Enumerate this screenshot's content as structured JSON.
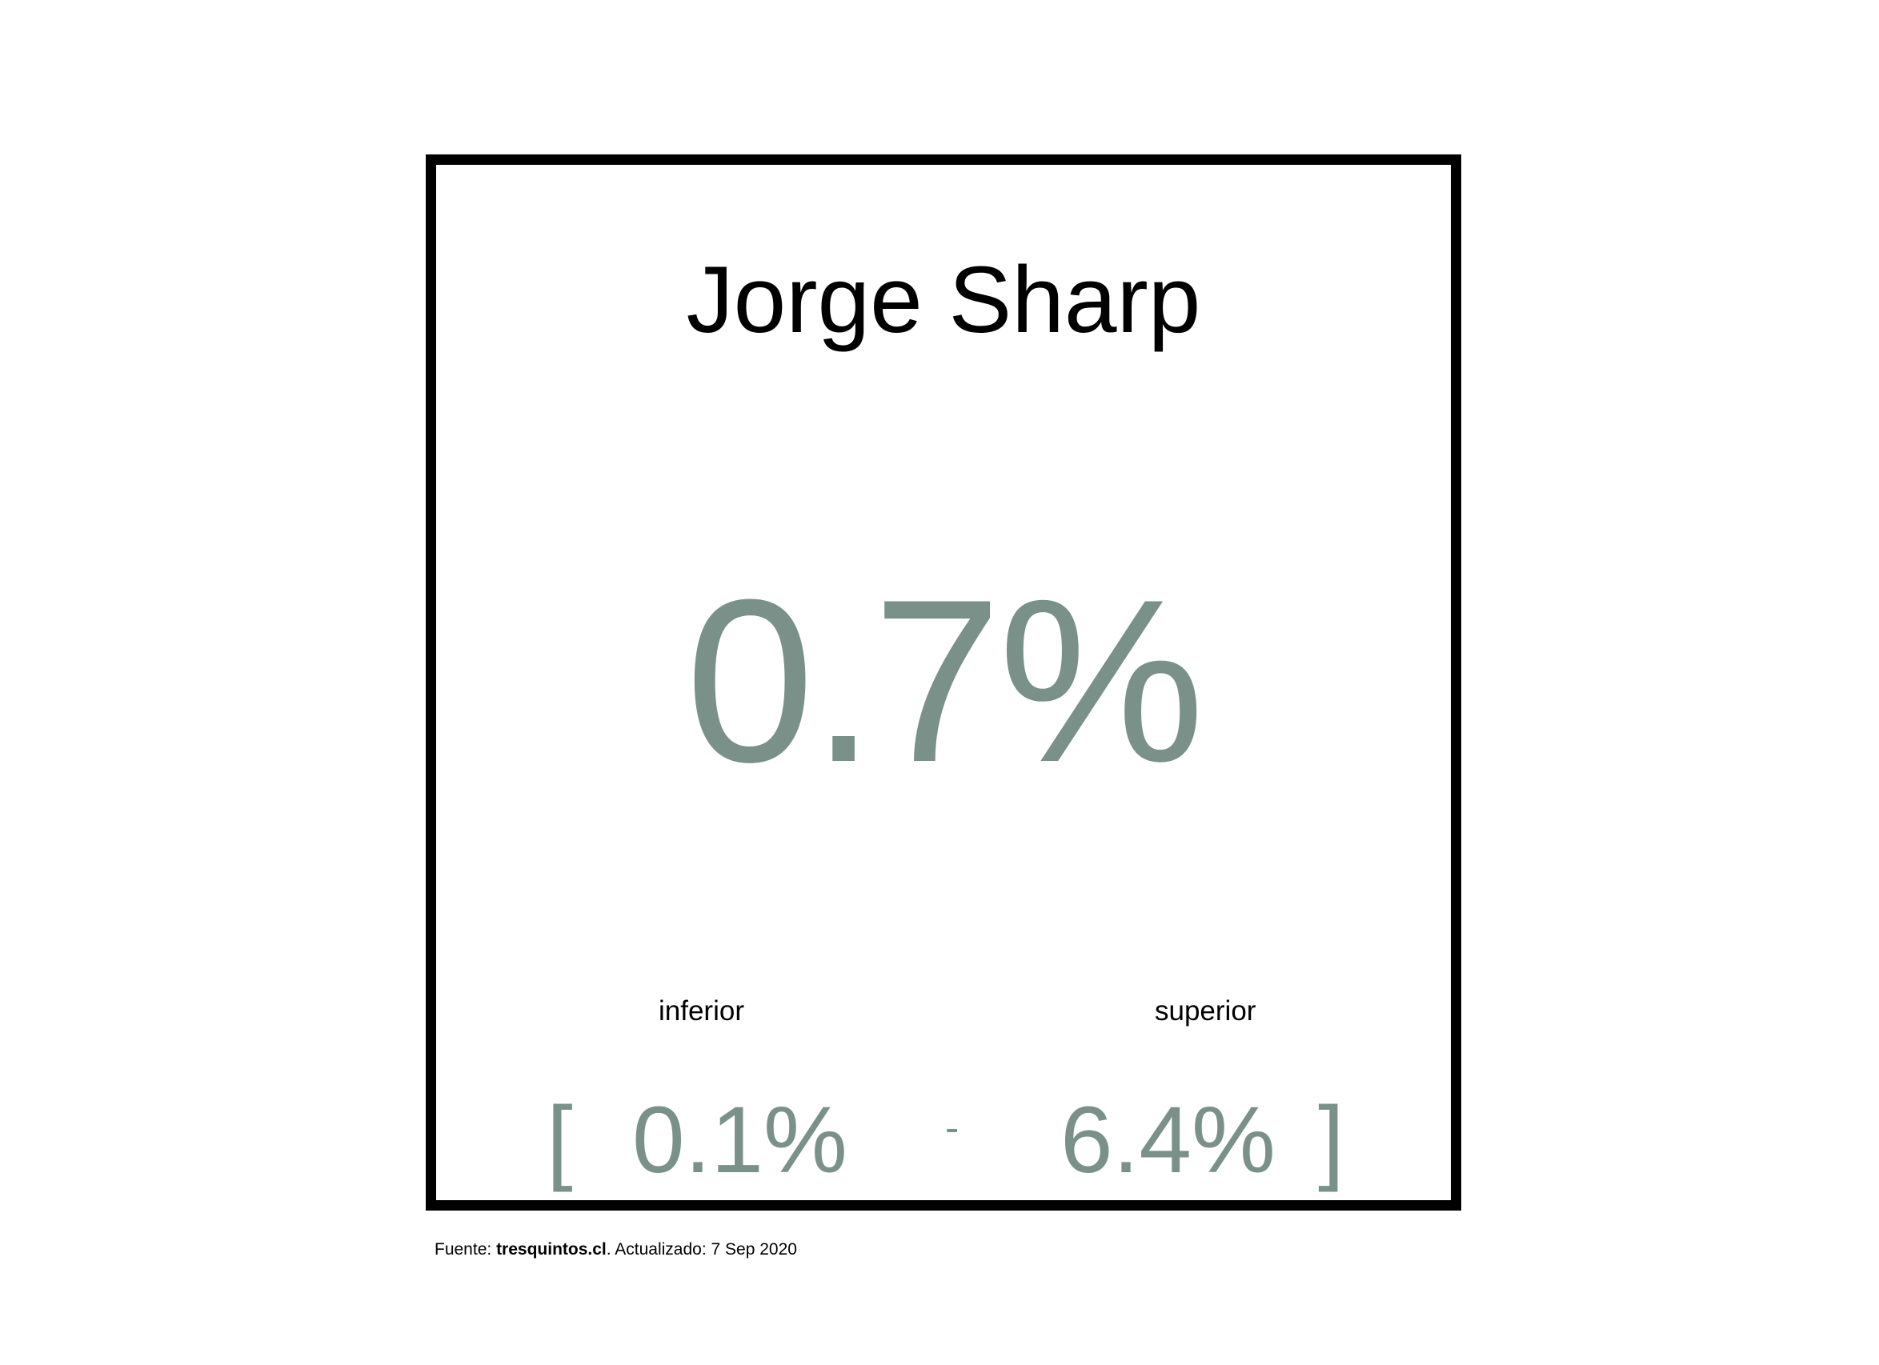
{
  "card": {
    "name": "Jorge Sharp",
    "value": "0.7%",
    "range": {
      "lower_label": "inferior",
      "upper_label": "superior",
      "open_bracket": "[",
      "lower_value": "0.1%",
      "separator": "-",
      "upper_value": "6.4%",
      "close_bracket": "]"
    }
  },
  "footer": {
    "prefix": "Fuente: ",
    "source": "tresquintos.cl",
    "suffix": ". Actualizado: 7 Sep 2020"
  },
  "colors": {
    "accent": "#7a9189",
    "border": "#000000",
    "text": "#000000",
    "background": "#ffffff"
  }
}
